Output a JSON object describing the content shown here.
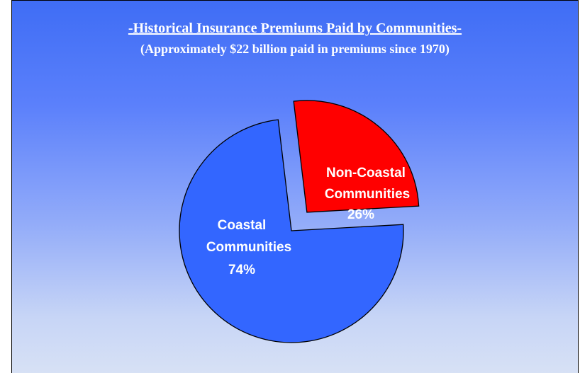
{
  "chart_data": {
    "type": "pie",
    "title": "-Historical Insurance Premiums Paid by Communities-",
    "subtitle": "(Approximately $22 billion paid in premiums since 1970)",
    "slices": [
      {
        "label_lines": [
          "Coastal",
          "Communities"
        ],
        "value_label": "74%",
        "value": 74,
        "color": "#3366ff",
        "exploded": false
      },
      {
        "label_lines": [
          "Non-Coastal",
          "Communities"
        ],
        "value_label": "26%",
        "value": 26,
        "color": "#ff0000",
        "exploded": true
      }
    ]
  }
}
